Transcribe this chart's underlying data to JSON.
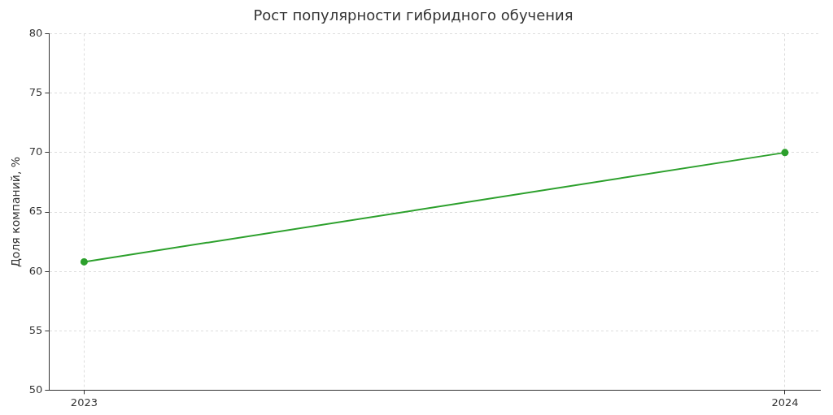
{
  "chart_data": {
    "type": "line",
    "title": "Рост популярности гибридного обучения",
    "ylabel": "Доля компаний, %",
    "x": [
      2023,
      2024
    ],
    "series": [
      {
        "color": "#2ca02c",
        "values": [
          60.8,
          70
        ]
      }
    ],
    "xlim": [
      2022.95,
      2024.05
    ],
    "xticks": [
      2023,
      2024
    ],
    "ylim": [
      50,
      80
    ],
    "yticks": [
      50,
      55,
      60,
      65,
      70,
      75,
      80
    ],
    "grid": true,
    "legend": false,
    "marker": "circle",
    "line_style": "solid"
  }
}
